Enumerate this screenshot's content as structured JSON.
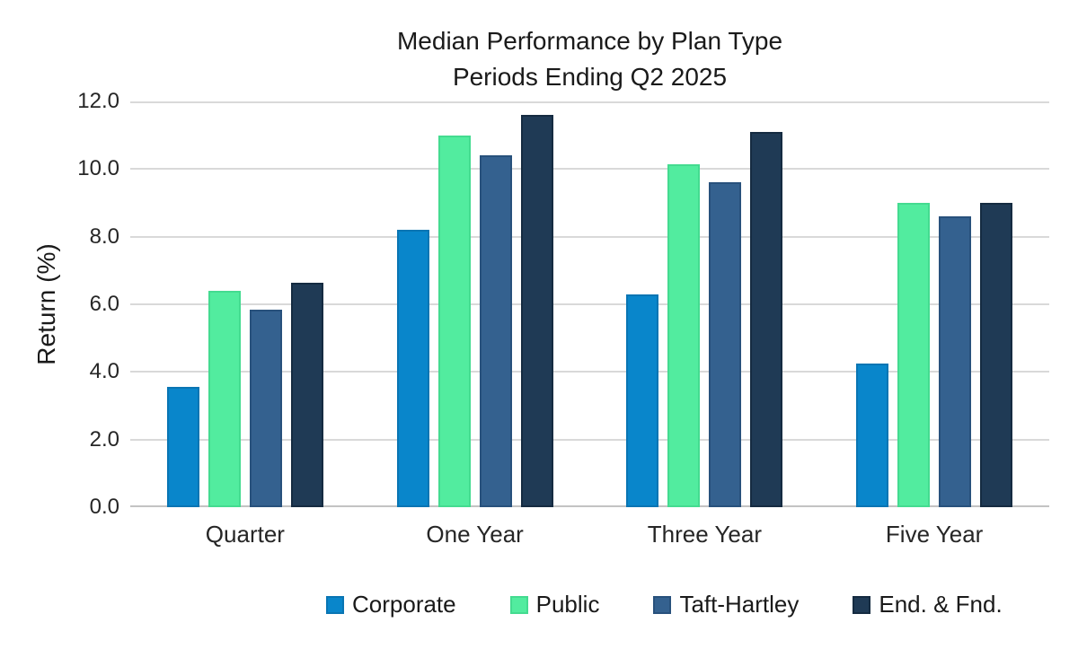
{
  "chart_data": {
    "type": "bar",
    "title": "Median Performance by Plan Type",
    "subtitle": "Periods Ending Q2 2025",
    "ylabel": "Return (%)",
    "categories": [
      "Quarter",
      "One Year",
      "Three Year",
      "Five Year"
    ],
    "series": [
      {
        "name": "Corporate",
        "color": "#0986CB",
        "border_color": "#0975B3",
        "values": [
          3.55,
          8.2,
          6.3,
          4.25
        ]
      },
      {
        "name": "Public",
        "color": "#52EC9F",
        "border_color": "#44DB90",
        "values": [
          6.4,
          11.0,
          10.15,
          9.0
        ]
      },
      {
        "name": "Taft-Hartley",
        "color": "#34618F",
        "border_color": "#28517C",
        "values": [
          5.85,
          10.4,
          9.6,
          8.6
        ]
      },
      {
        "name": "End. & Fnd.",
        "color": "#1F3A55",
        "border_color": "#152B41",
        "values": [
          6.65,
          11.6,
          11.1,
          9.0
        ]
      }
    ],
    "ylim": [
      0,
      12
    ],
    "ytick_step": 2,
    "ytick_labels": [
      "0.0",
      "2.0",
      "4.0",
      "6.0",
      "8.0",
      "10.0",
      "12.0"
    ],
    "grid": "horizontal",
    "legend_position": "bottom",
    "colors": {
      "background": "#ffffff",
      "gridline": "#d9d9d9",
      "axis_line": "#c3c3c3",
      "text": "#262626"
    }
  }
}
